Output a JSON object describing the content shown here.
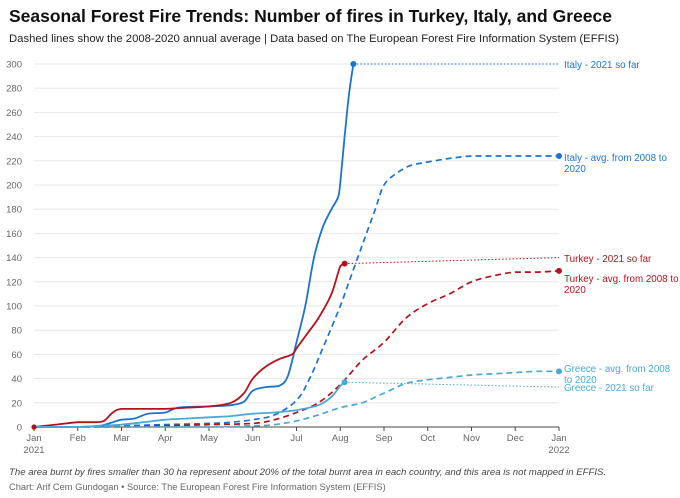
{
  "title": "Seasonal Forest Fire Trends: Number of fires in Turkey, Italy, and Greece",
  "subtitle": "Dashed lines show the 2008-2020 annual average | Data based on The European Forest Fire Information System (EFFIS)",
  "note": "The area burnt by fires smaller than 30 ha represent about 20% of the total burnt area in each country, and this area is not mapped in EFFIS.",
  "credit": "Chart: Arif Cem Gundogan • Source: The European Forest Fire Information System (EFFIS)",
  "chart_data": {
    "type": "line",
    "title": "Seasonal Forest Fire Trends: Number of fires in Turkey, Italy, and Greece",
    "subtitle": "Dashed lines show the 2008-2020 annual average | Data based on The European Forest Fire Information System (EFFIS)",
    "x_ticks": [
      {
        "x": 0,
        "label": "Jan",
        "label2": "2021"
      },
      {
        "x": 1,
        "label": "Feb"
      },
      {
        "x": 2,
        "label": "Mar"
      },
      {
        "x": 3,
        "label": "Apr"
      },
      {
        "x": 4,
        "label": "May"
      },
      {
        "x": 5,
        "label": "Jun"
      },
      {
        "x": 6,
        "label": "Jul"
      },
      {
        "x": 7,
        "label": "Aug"
      },
      {
        "x": 8,
        "label": "Sep"
      },
      {
        "x": 9,
        "label": "Oct"
      },
      {
        "x": 10,
        "label": "Nov"
      },
      {
        "x": 11,
        "label": "Dec"
      },
      {
        "x": 12,
        "label": "Jan",
        "label2": "2022"
      }
    ],
    "xlim": [
      0,
      12
    ],
    "ylim": [
      0,
      300
    ],
    "y_ticks": [
      0,
      20,
      40,
      60,
      80,
      100,
      120,
      140,
      160,
      180,
      200,
      220,
      240,
      260,
      280,
      300
    ],
    "grid": "horizontal",
    "series": [
      {
        "name": "Italy - avg. from 2008 to 2020",
        "color": "#1a73d1",
        "dash": true,
        "end_marker": true,
        "points": [
          [
            0,
            0
          ],
          [
            1,
            0
          ],
          [
            2,
            1
          ],
          [
            3,
            2
          ],
          [
            4,
            3
          ],
          [
            4.5,
            4
          ],
          [
            5,
            6
          ],
          [
            5.5,
            10
          ],
          [
            6,
            22
          ],
          [
            6.3,
            40
          ],
          [
            6.6,
            65
          ],
          [
            7,
            100
          ],
          [
            7.2,
            120
          ],
          [
            7.5,
            150
          ],
          [
            7.8,
            180
          ],
          [
            8,
            200
          ],
          [
            8.3,
            210
          ],
          [
            8.6,
            216
          ],
          [
            9,
            219
          ],
          [
            9.5,
            222
          ],
          [
            10,
            224
          ],
          [
            10.5,
            224
          ],
          [
            11,
            224
          ],
          [
            12,
            224
          ]
        ]
      },
      {
        "name": "Italy - 2021 so far",
        "color": "#1a73d1",
        "dash": false,
        "end_marker": true,
        "extend_to": 12,
        "extend_y": 300,
        "points": [
          [
            0,
            0
          ],
          [
            0.5,
            0
          ],
          [
            1,
            0
          ],
          [
            1.5,
            1
          ],
          [
            1.8,
            4
          ],
          [
            2,
            6
          ],
          [
            2.3,
            7
          ],
          [
            2.6,
            11
          ],
          [
            3,
            12
          ],
          [
            3.3,
            16
          ],
          [
            4,
            17
          ],
          [
            4.5,
            18
          ],
          [
            4.8,
            21
          ],
          [
            5,
            30
          ],
          [
            5.3,
            33
          ],
          [
            5.6,
            34
          ],
          [
            5.8,
            42
          ],
          [
            6,
            70
          ],
          [
            6.2,
            100
          ],
          [
            6.4,
            140
          ],
          [
            6.6,
            165
          ],
          [
            6.8,
            180
          ],
          [
            6.95,
            190
          ],
          [
            7,
            202
          ],
          [
            7.1,
            240
          ],
          [
            7.2,
            275
          ],
          [
            7.3,
            300
          ]
        ]
      },
      {
        "name": "Turkey - avg. from 2008 to 2020",
        "color": "#b5121b",
        "dash": true,
        "end_marker": true,
        "points": [
          [
            0,
            0
          ],
          [
            1,
            0
          ],
          [
            2,
            0
          ],
          [
            3,
            1
          ],
          [
            4,
            2
          ],
          [
            5,
            3
          ],
          [
            5.5,
            6
          ],
          [
            6,
            12
          ],
          [
            6.5,
            20
          ],
          [
            7,
            35
          ],
          [
            7.5,
            55
          ],
          [
            8,
            70
          ],
          [
            8.5,
            90
          ],
          [
            9,
            102
          ],
          [
            9.5,
            110
          ],
          [
            10,
            120
          ],
          [
            10.5,
            125
          ],
          [
            11,
            128
          ],
          [
            11.5,
            128
          ],
          [
            12,
            129
          ]
        ]
      },
      {
        "name": "Turkey - 2021 so far",
        "color": "#b5121b",
        "dash": false,
        "end_marker": true,
        "extend_to": 12,
        "extend_y": 140,
        "points": [
          [
            0,
            0
          ],
          [
            0.5,
            2
          ],
          [
            1,
            4
          ],
          [
            1.4,
            4
          ],
          [
            1.6,
            5
          ],
          [
            1.8,
            12
          ],
          [
            2,
            15
          ],
          [
            2.5,
            15
          ],
          [
            3,
            15
          ],
          [
            3.5,
            16
          ],
          [
            4,
            17
          ],
          [
            4.5,
            20
          ],
          [
            4.8,
            28
          ],
          [
            5,
            40
          ],
          [
            5.3,
            50
          ],
          [
            5.6,
            56
          ],
          [
            5.9,
            60
          ],
          [
            6,
            65
          ],
          [
            6.2,
            75
          ],
          [
            6.5,
            90
          ],
          [
            6.8,
            110
          ],
          [
            7,
            133
          ],
          [
            7.1,
            135
          ]
        ]
      },
      {
        "name": "Greece - avg. from 2008 to 2020",
        "color": "#48aad8",
        "dash": true,
        "end_marker": true,
        "points": [
          [
            0,
            0
          ],
          [
            2,
            0
          ],
          [
            3,
            0
          ],
          [
            4,
            0
          ],
          [
            5,
            1
          ],
          [
            5.5,
            2
          ],
          [
            6,
            5
          ],
          [
            6.5,
            10
          ],
          [
            7,
            16
          ],
          [
            7.5,
            20
          ],
          [
            8,
            28
          ],
          [
            8.5,
            36
          ],
          [
            9,
            39
          ],
          [
            9.5,
            41
          ],
          [
            10,
            43
          ],
          [
            10.5,
            44
          ],
          [
            11,
            45
          ],
          [
            11.5,
            46
          ],
          [
            12,
            46
          ]
        ]
      },
      {
        "name": "Greece - 2021 so far",
        "color": "#48aad8",
        "dash": false,
        "end_marker": true,
        "extend_to": 12,
        "extend_y": 33,
        "points": [
          [
            0,
            0
          ],
          [
            1,
            0
          ],
          [
            1.5,
            1
          ],
          [
            2,
            2
          ],
          [
            2.5,
            4
          ],
          [
            3,
            6
          ],
          [
            3.5,
            7
          ],
          [
            4,
            8
          ],
          [
            4.5,
            9
          ],
          [
            5,
            11
          ],
          [
            5.5,
            12
          ],
          [
            6,
            14
          ],
          [
            6.5,
            18
          ],
          [
            6.8,
            25
          ],
          [
            7,
            34
          ],
          [
            7.1,
            37
          ]
        ]
      }
    ]
  },
  "labels": [
    {
      "line1": "Italy - 2021 so far",
      "color": "#1a73d1"
    },
    {
      "line1": "Italy - avg. from 2008 to",
      "line2": "2020",
      "color": "#1a73d1"
    },
    {
      "line1": "Turkey - 2021 so far",
      "color": "#b5121b"
    },
    {
      "line1": "Turkey - avg. from 2008 to",
      "line2": "2020",
      "color": "#b5121b"
    },
    {
      "line1": "Greece - avg. from 2008",
      "line2": "to 2020",
      "color": "#48aad8"
    },
    {
      "line1": "Greece - 2021 so far",
      "color": "#48aad8"
    }
  ]
}
